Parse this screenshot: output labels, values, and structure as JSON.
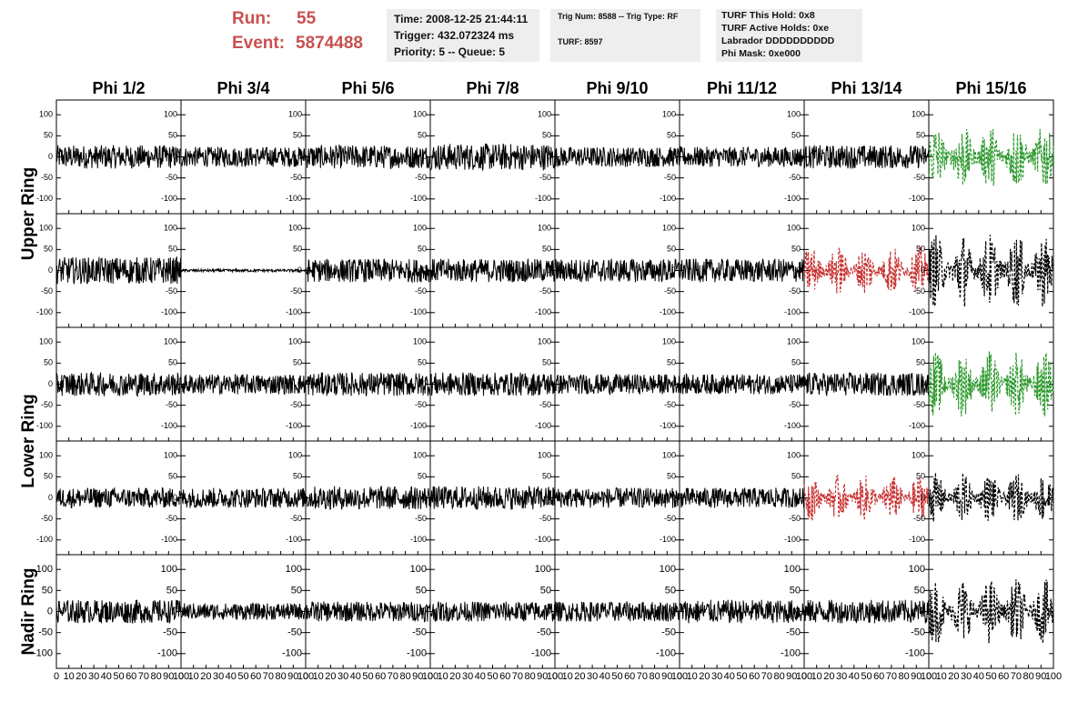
{
  "header": {
    "run_label": "Run:",
    "run": "55",
    "event_label": "Event:",
    "event": "5874488",
    "box1": [
      "Time: 2008-12-25 21:44:11",
      "Trigger: 432.072324 ms",
      "Priority: 5 -- Queue: 5"
    ],
    "box2": [
      "Trig Num: 8588 -- Trig Type: RF",
      "TURF: 8597"
    ],
    "box3": [
      "TURF This Hold: 0x8",
      "TURF Active Holds: 0xe",
      "Labrador DDDDDDDDDD",
      "Phi Mask: 0xe000"
    ]
  },
  "columns": [
    "Phi 1/2",
    "Phi 3/4",
    "Phi 5/6",
    "Phi 7/8",
    "Phi 9/10",
    "Phi 11/12",
    "Phi 13/14",
    "Phi 15/16"
  ],
  "rows": [
    "Upper Ring",
    "Lower Ring",
    "Nadir Ring"
  ],
  "axes": {
    "ylim": [
      -135,
      135
    ],
    "yticks": [
      100,
      50,
      0,
      -50,
      -100
    ],
    "xlim": [
      0,
      100
    ],
    "xticks": [
      0,
      10,
      20,
      30,
      40,
      50,
      60,
      70,
      80,
      90,
      100
    ]
  },
  "panels": [
    [
      {
        "amplitude": 35,
        "color": "#000000",
        "dashed": false
      },
      {
        "amplitude": 30,
        "color": "#000000",
        "dashed": false
      },
      {
        "amplitude": 35,
        "color": "#000000",
        "dashed": false
      },
      {
        "amplitude": 40,
        "color": "#000000",
        "dashed": false
      },
      {
        "amplitude": 30,
        "color": "#000000",
        "dashed": false
      },
      {
        "amplitude": 30,
        "color": "#000000",
        "dashed": false
      },
      {
        "amplitude": 35,
        "color": "#000000",
        "dashed": false
      },
      {
        "amplitude": 80,
        "color": "#2e9a2e",
        "dashed": true
      }
    ],
    [
      {
        "amplitude": 40,
        "color": "#000000",
        "dashed": false
      },
      {
        "amplitude": 4,
        "color": "#000000",
        "dashed": false
      },
      {
        "amplitude": 35,
        "color": "#000000",
        "dashed": false
      },
      {
        "amplitude": 35,
        "color": "#000000",
        "dashed": false
      },
      {
        "amplitude": 35,
        "color": "#000000",
        "dashed": false
      },
      {
        "amplitude": 35,
        "color": "#000000",
        "dashed": false
      },
      {
        "amplitude": 60,
        "color": "#c83232",
        "dashed": true
      },
      {
        "amplitude": 90,
        "color": "#000000",
        "dashed": true
      }
    ],
    [
      {
        "amplitude": 35,
        "color": "#000000",
        "dashed": false
      },
      {
        "amplitude": 30,
        "color": "#000000",
        "dashed": false
      },
      {
        "amplitude": 35,
        "color": "#000000",
        "dashed": false
      },
      {
        "amplitude": 35,
        "color": "#000000",
        "dashed": false
      },
      {
        "amplitude": 30,
        "color": "#000000",
        "dashed": false
      },
      {
        "amplitude": 30,
        "color": "#000000",
        "dashed": false
      },
      {
        "amplitude": 35,
        "color": "#000000",
        "dashed": false
      },
      {
        "amplitude": 80,
        "color": "#2e9a2e",
        "dashed": true
      }
    ],
    [
      {
        "amplitude": 30,
        "color": "#000000",
        "dashed": false
      },
      {
        "amplitude": 30,
        "color": "#000000",
        "dashed": false
      },
      {
        "amplitude": 35,
        "color": "#000000",
        "dashed": false
      },
      {
        "amplitude": 35,
        "color": "#000000",
        "dashed": false
      },
      {
        "amplitude": 30,
        "color": "#000000",
        "dashed": false
      },
      {
        "amplitude": 30,
        "color": "#000000",
        "dashed": false
      },
      {
        "amplitude": 55,
        "color": "#c83232",
        "dashed": true
      },
      {
        "amplitude": 60,
        "color": "#000000",
        "dashed": true
      }
    ],
    [
      {
        "amplitude": 35,
        "color": "#000000",
        "dashed": false
      },
      {
        "amplitude": 25,
        "color": "#000000",
        "dashed": false
      },
      {
        "amplitude": 30,
        "color": "#000000",
        "dashed": false
      },
      {
        "amplitude": 30,
        "color": "#000000",
        "dashed": false
      },
      {
        "amplitude": 30,
        "color": "#000000",
        "dashed": false
      },
      {
        "amplitude": 35,
        "color": "#000000",
        "dashed": false
      },
      {
        "amplitude": 35,
        "color": "#000000",
        "dashed": false
      },
      {
        "amplitude": 80,
        "color": "#000000",
        "dashed": true
      }
    ]
  ]
}
